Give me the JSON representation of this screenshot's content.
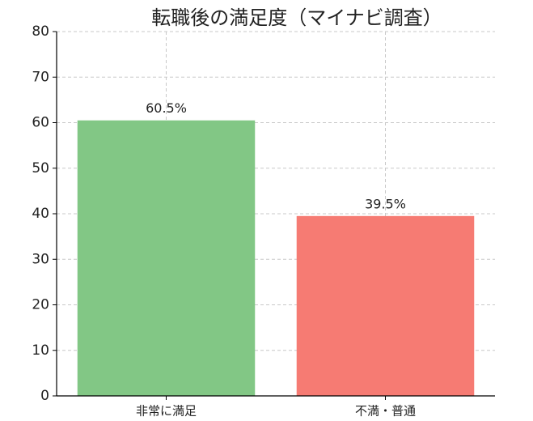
{
  "chart_data": {
    "type": "bar",
    "title": "転職後の満足度（マイナビ調査）",
    "categories": [
      "非常に満足",
      "不満・普通"
    ],
    "values": [
      60.5,
      39.5
    ],
    "value_labels": [
      "60.5%",
      "39.5%"
    ],
    "colors": [
      "#82c785",
      "#f67b73"
    ],
    "ylim": [
      0,
      80
    ],
    "yticks": [
      0,
      10,
      20,
      30,
      40,
      50,
      60,
      70,
      80
    ],
    "grid": true
  }
}
